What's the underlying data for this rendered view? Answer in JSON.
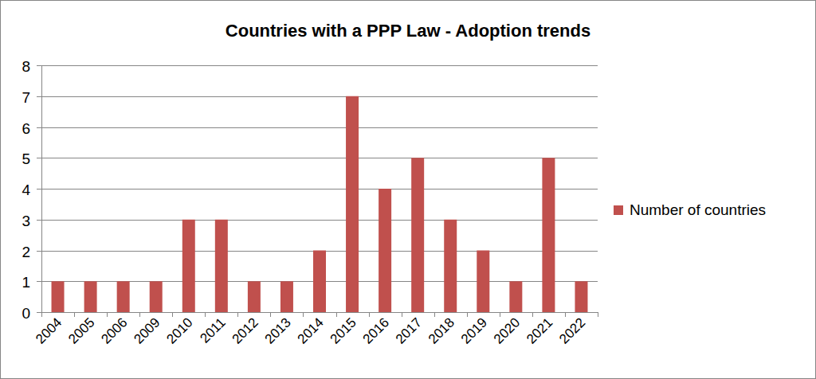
{
  "chart_data": {
    "type": "bar",
    "title": "Countries with a PPP Law - Adoption trends",
    "categories": [
      "2004",
      "2005",
      "2006",
      "2009",
      "2010",
      "2011",
      "2012",
      "2013",
      "2014",
      "2015",
      "2016",
      "2017",
      "2018",
      "2019",
      "2020",
      "2021",
      "2022"
    ],
    "series": [
      {
        "name": "Number of countries",
        "color": "#c0504d",
        "values": [
          1,
          1,
          1,
          1,
          3,
          3,
          1,
          1,
          2,
          7,
          4,
          5,
          3,
          2,
          1,
          5,
          1
        ]
      }
    ],
    "ylim": [
      0,
      8
    ],
    "yticks": [
      0,
      1,
      2,
      3,
      4,
      5,
      6,
      7,
      8
    ],
    "grid": true,
    "legend": "right"
  }
}
